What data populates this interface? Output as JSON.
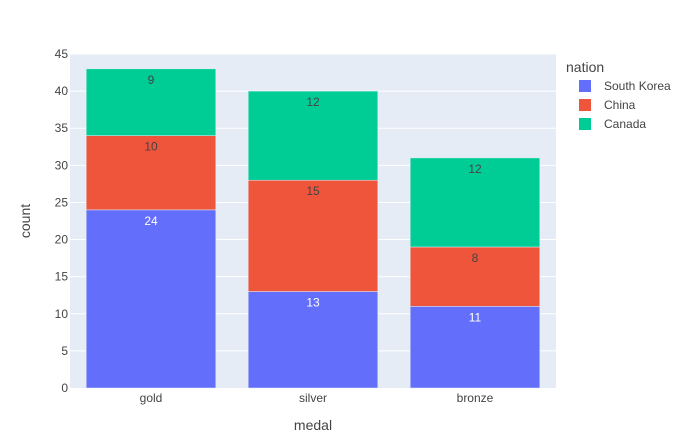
{
  "chart_data": {
    "type": "bar",
    "stacked": true,
    "categories": [
      "gold",
      "silver",
      "bronze"
    ],
    "series": [
      {
        "name": "South Korea",
        "values": [
          24,
          13,
          11
        ],
        "color": "#636efa",
        "label_color": "#ffffff"
      },
      {
        "name": "China",
        "values": [
          10,
          15,
          8
        ],
        "color": "#ef553b",
        "label_color": "#444444"
      },
      {
        "name": "Canada",
        "values": [
          9,
          12,
          12
        ],
        "color": "#00cc96",
        "label_color": "#444444"
      }
    ],
    "xlabel": "medal",
    "ylabel": "count",
    "ylim": [
      0,
      45
    ],
    "yticks": [
      0,
      5,
      10,
      15,
      20,
      25,
      30,
      35,
      40,
      45
    ],
    "legend": {
      "title": "nation",
      "position": "right"
    },
    "grid": true,
    "plot_bg": "#e5ecf6",
    "grid_color": "#ffffff"
  }
}
